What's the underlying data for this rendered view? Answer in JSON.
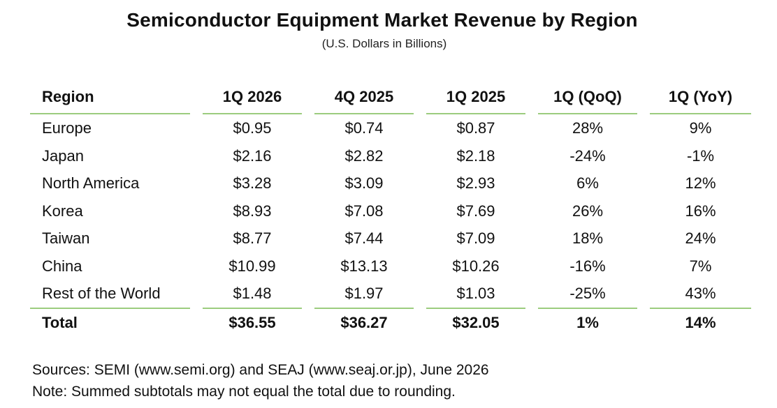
{
  "chart_data": {
    "type": "table",
    "title": "Semiconductor Equipment Market Revenue by Region",
    "subtitle": "(U.S. Dollars in Billions)",
    "columns": [
      "Region",
      "1Q 2026",
      "4Q 2025",
      "1Q 2025",
      "1Q (QoQ)",
      "1Q (YoY)"
    ],
    "rows": [
      [
        "Europe",
        "$0.95",
        "$0.74",
        "$0.87",
        "28%",
        "9%"
      ],
      [
        "Japan",
        "$2.16",
        "$2.82",
        "$2.18",
        "-24%",
        "-1%"
      ],
      [
        "North America",
        "$3.28",
        "$3.09",
        "$2.93",
        "6%",
        "12%"
      ],
      [
        "Korea",
        "$8.93",
        "$7.08",
        "$7.69",
        "26%",
        "16%"
      ],
      [
        "Taiwan",
        "$8.77",
        "$7.44",
        "$7.09",
        "18%",
        "24%"
      ],
      [
        "China",
        "$10.99",
        "$13.13",
        "$10.26",
        "-16%",
        "7%"
      ],
      [
        "Rest of the World",
        "$1.48",
        "$1.97",
        "$1.03",
        "-25%",
        "43%"
      ]
    ],
    "total": [
      "Total",
      "$36.55",
      "$36.27",
      "$32.05",
      "1%",
      "14%"
    ],
    "rule_color": "#9ccc7e"
  },
  "notes": {
    "sources": "Sources: SEMI (www.semi.org) and SEAJ (www.seaj.or.jp), June 2026",
    "note": "Note: Summed subtotals may not equal the total due to rounding."
  }
}
